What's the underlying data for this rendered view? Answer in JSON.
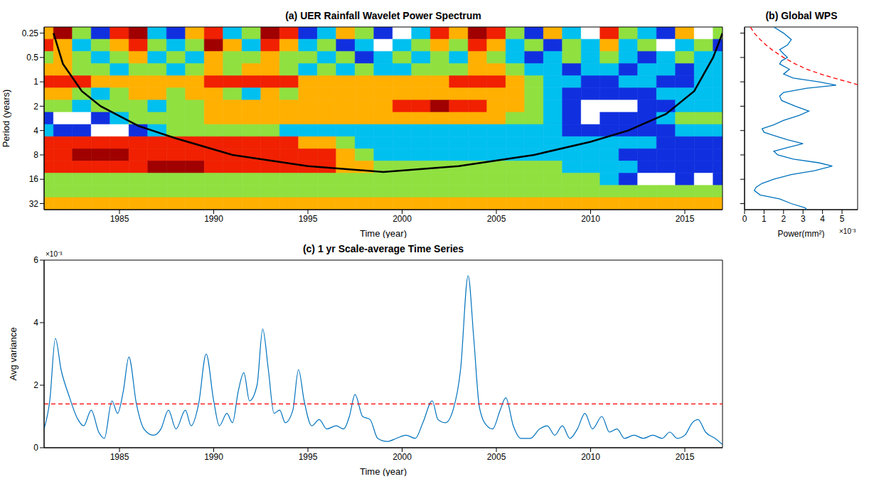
{
  "chart_data": [
    {
      "type": "heatmap",
      "title": "(a) UER Rainfall Wavelet Power Spectrum",
      "xlabel": "Time (year)",
      "ylabel": "Period (years)",
      "x": [
        1981,
        1982,
        1983,
        1984,
        1985,
        1986,
        1987,
        1988,
        1989,
        1990,
        1991,
        1992,
        1993,
        1994,
        1995,
        1996,
        1997,
        1998,
        1999,
        2000,
        2001,
        2002,
        2003,
        2004,
        2005,
        2006,
        2007,
        2008,
        2009,
        2010,
        2011,
        2012,
        2013,
        2014,
        2015,
        2016,
        2017
      ],
      "y": [
        0.25,
        0.354,
        0.5,
        0.707,
        1,
        1.414,
        2,
        2.828,
        4,
        5.657,
        8,
        11.31,
        16,
        22.63,
        32
      ],
      "cells": [
        [
          4,
          6,
          3,
          1,
          5,
          6,
          2,
          1,
          4,
          5,
          2,
          3,
          6,
          5,
          1,
          2,
          4,
          3,
          1,
          0,
          2,
          5,
          4,
          6,
          5,
          3,
          1,
          4,
          2,
          0,
          5,
          3,
          2,
          1,
          4,
          0,
          3
        ],
        [
          5,
          4,
          2,
          3,
          4,
          5,
          3,
          2,
          3,
          6,
          4,
          2,
          5,
          4,
          2,
          3,
          1,
          2,
          0,
          2,
          3,
          4,
          3,
          5,
          4,
          2,
          3,
          1,
          3,
          2,
          4,
          2,
          3,
          0,
          2,
          3,
          1
        ],
        [
          3,
          4,
          3,
          2,
          3,
          4,
          2,
          3,
          2,
          4,
          3,
          3,
          4,
          3,
          3,
          2,
          3,
          1,
          2,
          3,
          2,
          3,
          2,
          4,
          3,
          2,
          1,
          2,
          3,
          2,
          3,
          2,
          1,
          2,
          3,
          2,
          2
        ],
        [
          4,
          4,
          3,
          3,
          2,
          3,
          3,
          2,
          3,
          4,
          3,
          4,
          4,
          3,
          2,
          3,
          2,
          3,
          2,
          2,
          3,
          3,
          3,
          4,
          4,
          3,
          2,
          2,
          1,
          2,
          2,
          1,
          2,
          2,
          1,
          2,
          2
        ],
        [
          5,
          5,
          5,
          4,
          4,
          4,
          4,
          4,
          4,
          5,
          5,
          5,
          5,
          5,
          4,
          4,
          4,
          4,
          4,
          4,
          4,
          4,
          5,
          5,
          5,
          4,
          3,
          2,
          2,
          1,
          1,
          2,
          2,
          1,
          1,
          2,
          2
        ],
        [
          4,
          4,
          3,
          2,
          3,
          4,
          4,
          3,
          4,
          4,
          3,
          2,
          4,
          3,
          4,
          4,
          4,
          4,
          4,
          4,
          4,
          4,
          4,
          4,
          4,
          4,
          3,
          2,
          1,
          1,
          1,
          1,
          1,
          2,
          2,
          2,
          2
        ],
        [
          3,
          3,
          2,
          3,
          3,
          3,
          2,
          3,
          3,
          4,
          4,
          4,
          4,
          4,
          4,
          4,
          4,
          4,
          4,
          5,
          5,
          6,
          5,
          5,
          4,
          4,
          3,
          2,
          1,
          0,
          0,
          0,
          1,
          1,
          2,
          2,
          2
        ],
        [
          1,
          0,
          0,
          1,
          2,
          3,
          3,
          3,
          3,
          4,
          4,
          4,
          4,
          4,
          4,
          4,
          4,
          4,
          4,
          4,
          4,
          4,
          4,
          4,
          4,
          3,
          3,
          2,
          1,
          0,
          1,
          1,
          1,
          2,
          3,
          3,
          3
        ],
        [
          2,
          1,
          1,
          0,
          0,
          1,
          2,
          3,
          3,
          3,
          3,
          3,
          3,
          2,
          2,
          2,
          2,
          2,
          2,
          2,
          2,
          2,
          2,
          2,
          2,
          2,
          2,
          2,
          1,
          1,
          1,
          1,
          1,
          1,
          2,
          2,
          2
        ],
        [
          5,
          5,
          5,
          5,
          5,
          5,
          5,
          5,
          5,
          5,
          5,
          5,
          5,
          5,
          4,
          4,
          3,
          2,
          2,
          2,
          2,
          2,
          2,
          2,
          2,
          2,
          2,
          2,
          2,
          2,
          2,
          2,
          2,
          1,
          1,
          1,
          1
        ],
        [
          5,
          5,
          6,
          6,
          6,
          5,
          5,
          5,
          5,
          5,
          5,
          5,
          5,
          5,
          5,
          5,
          4,
          3,
          2,
          2,
          2,
          2,
          2,
          2,
          2,
          2,
          2,
          2,
          2,
          2,
          2,
          1,
          1,
          1,
          1,
          1,
          1
        ],
        [
          5,
          5,
          5,
          5,
          5,
          5,
          6,
          6,
          6,
          5,
          5,
          5,
          5,
          5,
          5,
          5,
          4,
          4,
          3,
          3,
          3,
          3,
          3,
          3,
          3,
          3,
          3,
          3,
          2,
          2,
          2,
          2,
          1,
          1,
          1,
          1,
          1
        ],
        [
          3,
          3,
          3,
          3,
          3,
          3,
          3,
          3,
          3,
          3,
          3,
          3,
          3,
          3,
          3,
          3,
          3,
          3,
          3,
          3,
          3,
          3,
          3,
          3,
          3,
          3,
          3,
          3,
          3,
          3,
          2,
          1,
          0,
          0,
          1,
          0,
          1
        ],
        [
          3,
          3,
          3,
          3,
          3,
          3,
          3,
          3,
          3,
          3,
          3,
          3,
          3,
          3,
          3,
          3,
          3,
          3,
          3,
          3,
          3,
          3,
          3,
          3,
          3,
          3,
          3,
          3,
          3,
          3,
          3,
          3,
          3,
          3,
          3,
          3,
          3
        ],
        [
          4,
          4,
          4,
          4,
          4,
          4,
          4,
          4,
          4,
          4,
          4,
          4,
          4,
          4,
          4,
          4,
          4,
          4,
          4,
          4,
          4,
          4,
          4,
          4,
          4,
          4,
          4,
          4,
          4,
          4,
          4,
          4,
          4,
          4,
          4,
          4,
          4
        ]
      ],
      "colors": [
        "#ffffff",
        "#1030e0",
        "#00c0f0",
        "#90e040",
        "#ffb000",
        "#f02000",
        "#a00000"
      ],
      "cone_of_influence": {
        "color": "#000000",
        "x": [
          1981.5,
          1982,
          1983,
          1984,
          1986,
          1988,
          1991,
          1995,
          1999,
          2003,
          2007,
          2010,
          2012,
          2014,
          2015.5,
          2016.5,
          2017
        ],
        "y": [
          0.25,
          0.6,
          1.3,
          2,
          3.5,
          5,
          8,
          11,
          13,
          11,
          8,
          5.5,
          4,
          2.5,
          1.3,
          0.5,
          0.25
        ]
      },
      "xlim": [
        1981,
        2017
      ],
      "ylim": [
        0.21,
        38
      ],
      "xticks": [
        1985,
        1990,
        1995,
        2000,
        2005,
        2010,
        2015
      ],
      "yticks": [
        0.25,
        0.5,
        1,
        2,
        4,
        8,
        16,
        32
      ],
      "log": "y"
    },
    {
      "type": "line",
      "title": "(b) Global WPS",
      "xlabel": "Power(mm²)",
      "x_exponent": "×10⁻³",
      "series": [
        {
          "color": "#0072bd",
          "x": [
            1.5,
            2.0,
            2.4,
            2.2,
            1.8,
            2.0,
            2.2,
            1.9,
            1.8,
            2.3,
            2.0,
            2.5,
            3.8,
            4.7,
            3.2,
            2.0,
            1.8,
            1.9,
            2.6,
            3.3,
            2.8,
            2.0,
            1.5,
            0.9,
            1.0,
            1.5,
            2.2,
            3.0,
            2.2,
            1.5,
            1.7,
            2.5,
            3.8,
            4.5,
            3.6,
            2.4,
            1.5,
            0.9,
            0.6,
            0.5,
            0.8,
            1.8,
            2.4,
            3.1,
            3.2
          ],
          "y": [
            0.21,
            0.25,
            0.3,
            0.35,
            0.4,
            0.45,
            0.5,
            0.55,
            0.6,
            0.7,
            0.8,
            0.9,
            1.0,
            1.1,
            1.2,
            1.35,
            1.5,
            1.7,
            2.0,
            2.3,
            2.6,
            3.0,
            3.4,
            3.8,
            4.2,
            4.6,
            5.2,
            5.8,
            6.5,
            7.2,
            8.0,
            9.0,
            10.0,
            11.0,
            12.5,
            14.0,
            16.0,
            18.0,
            20.0,
            22.0,
            25.0,
            28.0,
            32.0,
            36.0,
            38.0
          ]
        },
        {
          "color": "#ff0000",
          "line_style": "dashed",
          "x": [
            0.3,
            0.5,
            0.8,
            1.1,
            1.4,
            2.0,
            2.6,
            3.2,
            3.9,
            4.6,
            5.3,
            5.9
          ],
          "y": [
            0.21,
            0.25,
            0.3,
            0.35,
            0.4,
            0.5,
            0.6,
            0.7,
            0.8,
            0.9,
            1.0,
            1.1
          ]
        }
      ],
      "xlim": [
        0,
        5.8
      ],
      "ylim": [
        0.21,
        38
      ],
      "xticks": [
        0,
        1,
        2,
        3,
        4,
        5
      ],
      "yticks": [
        0.25,
        0.5,
        1,
        2,
        4,
        8,
        16,
        32
      ],
      "log": "y",
      "tick_labels": "x"
    },
    {
      "type": "line",
      "title": "(c) 1 yr Scale-average Time Series",
      "xlabel": "Time (year)",
      "ylabel": "Avg variance",
      "y_exponent": "×10⁻³",
      "color": "#0072bd",
      "x": [
        1981.0,
        1981.3,
        1981.6,
        1981.9,
        1982.3,
        1982.8,
        1983.1,
        1983.5,
        1983.9,
        1984.2,
        1984.6,
        1984.9,
        1985.2,
        1985.5,
        1985.9,
        1986.3,
        1986.8,
        1987.2,
        1987.6,
        1988.0,
        1988.5,
        1988.8,
        1989.2,
        1989.6,
        1990.0,
        1990.3,
        1990.7,
        1991.0,
        1991.3,
        1991.6,
        1991.9,
        1992.3,
        1992.6,
        1992.9,
        1993.2,
        1993.5,
        1993.8,
        1994.2,
        1994.5,
        1994.8,
        1995.2,
        1995.6,
        1996.0,
        1996.5,
        1996.9,
        1997.2,
        1997.5,
        1997.9,
        1998.3,
        1998.7,
        1999.2,
        1999.7,
        2000.2,
        2000.7,
        2001.1,
        2001.6,
        2001.9,
        2002.3,
        2002.7,
        2003.1,
        2003.5,
        2003.8,
        2004.1,
        2004.5,
        2004.8,
        2005.2,
        2005.5,
        2005.9,
        2006.3,
        2006.8,
        2007.3,
        2007.7,
        2008.1,
        2008.5,
        2008.9,
        2009.3,
        2009.7,
        2010.1,
        2010.6,
        2011.0,
        2011.4,
        2011.8,
        2012.3,
        2012.8,
        2013.3,
        2013.8,
        2014.2,
        2014.6,
        2015.0,
        2015.4,
        2015.7,
        2016.1,
        2016.6,
        2017.0
      ],
      "values": [
        0.6,
        1.5,
        3.5,
        2.5,
        1.7,
        0.9,
        0.7,
        1.2,
        0.5,
        0.3,
        1.5,
        1.1,
        1.8,
        2.9,
        1.4,
        0.6,
        0.4,
        0.6,
        1.2,
        0.6,
        1.2,
        0.7,
        1.4,
        3.0,
        1.5,
        0.7,
        1.1,
        0.8,
        1.8,
        2.4,
        1.5,
        2.0,
        3.8,
        2.5,
        1.1,
        1.2,
        0.8,
        1.2,
        2.5,
        1.5,
        0.7,
        0.9,
        0.6,
        0.7,
        0.6,
        1.0,
        1.7,
        1.0,
        0.9,
        0.3,
        0.2,
        0.3,
        0.4,
        0.3,
        0.8,
        1.5,
        0.9,
        0.8,
        1.2,
        2.5,
        5.5,
        3.5,
        1.3,
        0.7,
        0.6,
        1.2,
        1.6,
        0.7,
        0.3,
        0.3,
        0.6,
        0.7,
        0.4,
        0.7,
        0.3,
        0.6,
        1.1,
        0.6,
        1.0,
        0.5,
        0.6,
        0.3,
        0.4,
        0.3,
        0.4,
        0.3,
        0.5,
        0.3,
        0.4,
        0.8,
        0.9,
        0.5,
        0.3,
        0.1
      ],
      "threshold": {
        "value": 1.4,
        "color": "#ff0000",
        "line_style": "dashed"
      },
      "xlim": [
        1981,
        2017
      ],
      "ylim": [
        0,
        6
      ],
      "xticks": [
        1985,
        1990,
        1995,
        2000,
        2005,
        2010,
        2015
      ],
      "yticks": [
        0,
        2,
        4,
        6
      ]
    }
  ]
}
